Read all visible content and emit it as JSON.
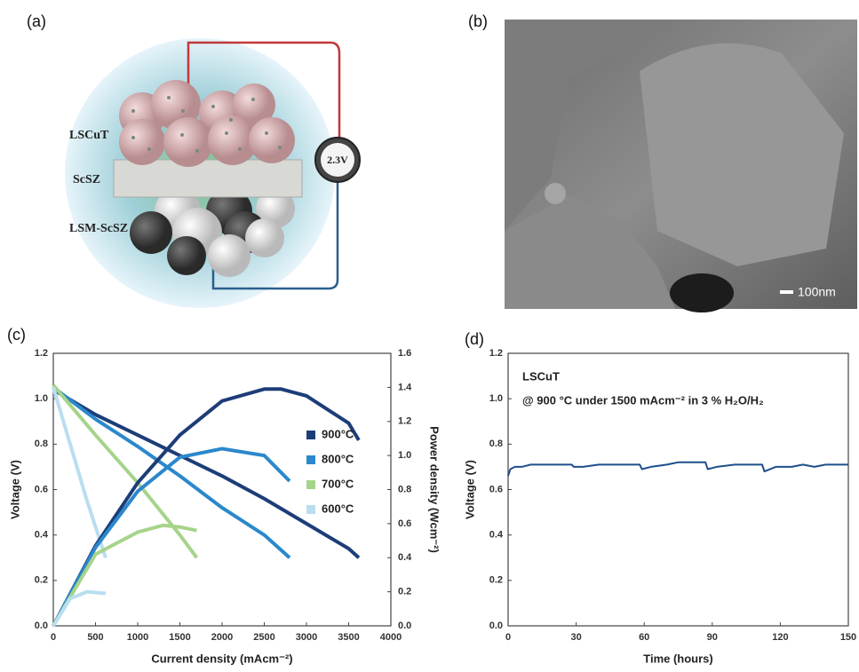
{
  "panel_labels": [
    "(a)",
    "(b)",
    "(c)",
    "(d)"
  ],
  "schematic": {
    "labels": [
      "LSCuT",
      "ScSZ",
      "LSM-ScSZ"
    ],
    "voltage": "2.3V"
  },
  "sem": {
    "scale_bar": "100nm"
  },
  "chart_data": [
    {
      "type": "line",
      "ylabel": "Voltage (V)",
      "y2label": "Power density (Wcm⁻²)",
      "xlabel": "Current density (mAcm⁻²)",
      "xlim": [
        0,
        4000
      ],
      "xticks": [
        0,
        500,
        1000,
        1500,
        2000,
        2500,
        3000,
        3500,
        4000
      ],
      "ylim": [
        0,
        1.2
      ],
      "yticks": [
        {
          "value": 0,
          "label": "0.0"
        },
        0.2,
        0.4,
        0.6,
        0.8,
        {
          "value": 1,
          "label": "1.0"
        },
        1.2
      ],
      "y2lim": [
        0,
        1.6
      ],
      "y2ticks": [
        {
          "value": 0,
          "label": "0.0"
        },
        0.2,
        0.4,
        0.6,
        0.8,
        {
          "value": 1,
          "label": "1.0"
        },
        1.2,
        1.4,
        1.6
      ],
      "series": [
        {
          "name": "900°C",
          "color": "#1c3d78",
          "x": [
            0,
            500,
            1000,
            1500,
            2000,
            2500,
            3000,
            3500,
            3620
          ],
          "values": [
            1.04,
            0.93,
            0.84,
            0.75,
            0.66,
            0.56,
            0.45,
            0.34,
            0.3
          ]
        },
        {
          "name": "800°C",
          "color": "#2b88cc",
          "x": [
            0,
            500,
            1000,
            1500,
            2000,
            2500,
            2800
          ],
          "values": [
            1.05,
            0.91,
            0.79,
            0.66,
            0.52,
            0.4,
            0.3
          ]
        },
        {
          "name": "700°C",
          "color": "#a6d48a",
          "x": [
            0,
            500,
            1000,
            1500,
            1700
          ],
          "values": [
            1.06,
            0.84,
            0.63,
            0.4,
            0.3
          ]
        },
        {
          "name": "600°C",
          "color": "#b9def0",
          "x": [
            0,
            200,
            400,
            620
          ],
          "values": [
            1.05,
            0.8,
            0.55,
            0.3
          ]
        },
        {
          "color": "#1c3d78",
          "axis": "y2",
          "x": [
            0,
            500,
            1000,
            1500,
            2000,
            2500,
            2700,
            3000,
            3500,
            3620
          ],
          "values": [
            0,
            0.47,
            0.84,
            1.12,
            1.32,
            1.39,
            1.39,
            1.35,
            1.19,
            1.09
          ]
        },
        {
          "color": "#2b88cc",
          "axis": "y2",
          "x": [
            0,
            500,
            1000,
            1500,
            2000,
            2500,
            2800
          ],
          "values": [
            0,
            0.46,
            0.79,
            0.99,
            1.04,
            1.0,
            0.85
          ]
        },
        {
          "color": "#a6d48a",
          "axis": "y2",
          "x": [
            0,
            500,
            1000,
            1300,
            1500,
            1700
          ],
          "values": [
            0,
            0.42,
            0.55,
            0.59,
            0.58,
            0.56
          ]
        },
        {
          "color": "#b9def0",
          "axis": "y2",
          "x": [
            0,
            200,
            400,
            620
          ],
          "values": [
            0,
            0.16,
            0.2,
            0.19
          ]
        }
      ]
    },
    {
      "type": "line",
      "ylabel": "Voltage (V)",
      "xlabel": "Time (hours)",
      "annotations": [
        "LSCuT",
        "@ 900 °C under 1500 mAcm⁻² in 3 % H₂O/H₂"
      ],
      "xlim": [
        0,
        150
      ],
      "xticks": [
        0,
        30,
        60,
        90,
        120,
        150
      ],
      "ylim": [
        0,
        1.2
      ],
      "yticks": [
        {
          "value": 0,
          "label": "0.0"
        },
        0.2,
        0.4,
        0.6,
        0.8,
        {
          "value": 1,
          "label": "1.0"
        },
        1.2
      ],
      "series": [
        {
          "color": "#1f4e8c",
          "x": [
            0,
            1,
            3,
            6,
            10,
            15,
            20,
            25,
            28,
            29,
            33,
            40,
            45,
            50,
            55,
            58,
            59,
            63,
            70,
            75,
            80,
            85,
            87,
            88,
            92,
            100,
            105,
            110,
            112,
            113,
            118,
            125,
            130,
            135,
            140,
            145,
            150
          ],
          "values": [
            0.66,
            0.69,
            0.7,
            0.7,
            0.71,
            0.71,
            0.71,
            0.71,
            0.71,
            0.7,
            0.7,
            0.71,
            0.71,
            0.71,
            0.71,
            0.71,
            0.69,
            0.7,
            0.71,
            0.72,
            0.72,
            0.72,
            0.72,
            0.69,
            0.7,
            0.71,
            0.71,
            0.71,
            0.71,
            0.68,
            0.7,
            0.7,
            0.71,
            0.7,
            0.71,
            0.71,
            0.71
          ]
        }
      ]
    }
  ]
}
